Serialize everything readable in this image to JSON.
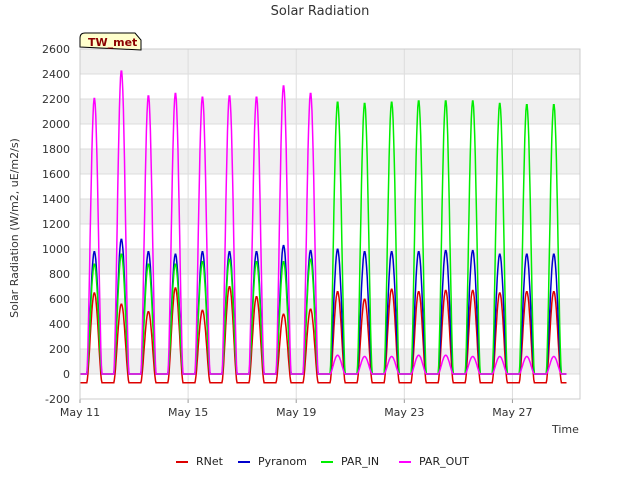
{
  "chart_data": {
    "type": "line",
    "title": "Solar Radiation",
    "xlabel": "Time",
    "ylabel": "Solar Radiation (W/m2, uE/m2/s)",
    "badge": "TW_met",
    "ylim": [
      -200,
      2600
    ],
    "yticks": [
      -200,
      0,
      200,
      400,
      600,
      800,
      1000,
      1200,
      1400,
      1600,
      1800,
      2000,
      2200,
      2400,
      2600
    ],
    "xlim": [
      "2024-05-11",
      "2024-05-29T12:00"
    ],
    "xticks": [
      {
        "x": "2024-05-11",
        "label": "May 11"
      },
      {
        "x": "2024-05-15",
        "label": "May 15"
      },
      {
        "x": "2024-05-19",
        "label": "May 19"
      },
      {
        "x": "2024-05-23",
        "label": "May 23"
      },
      {
        "x": "2024-05-27",
        "label": "May 27"
      }
    ],
    "grid": true,
    "legend_position": "bottom",
    "days": [
      "2024-05-11",
      "2024-05-12",
      "2024-05-13",
      "2024-05-14",
      "2024-05-15",
      "2024-05-16",
      "2024-05-17",
      "2024-05-18",
      "2024-05-19",
      "2024-05-20",
      "2024-05-21",
      "2024-05-22",
      "2024-05-23",
      "2024-05-24",
      "2024-05-25",
      "2024-05-26",
      "2024-05-27",
      "2024-05-28"
    ],
    "series": [
      {
        "name": "RNet",
        "color": "#dd0000",
        "daily_peak": [
          650,
          560,
          500,
          690,
          510,
          700,
          620,
          480,
          520,
          660,
          600,
          680,
          660,
          670,
          670,
          650,
          660,
          660
        ],
        "night_value": -70
      },
      {
        "name": "Pyranom",
        "color": "#0000cc",
        "daily_peak": [
          980,
          1080,
          980,
          960,
          980,
          980,
          980,
          1030,
          990,
          1000,
          980,
          980,
          980,
          990,
          990,
          960,
          960,
          960
        ],
        "night_value": 0
      },
      {
        "name": "PAR_IN",
        "color": "#00ee00",
        "daily_peak": [
          880,
          960,
          880,
          880,
          900,
          920,
          900,
          900,
          920,
          2180,
          2170,
          2180,
          2190,
          2190,
          2190,
          2170,
          2160,
          2160
        ],
        "night_value": 0
      },
      {
        "name": "PAR_OUT",
        "color": "#ff00ff",
        "daily_peak": [
          2210,
          2430,
          2230,
          2250,
          2220,
          2230,
          2220,
          2310,
          2250,
          150,
          140,
          140,
          150,
          150,
          140,
          140,
          140,
          140
        ],
        "night_value": 0
      }
    ]
  }
}
